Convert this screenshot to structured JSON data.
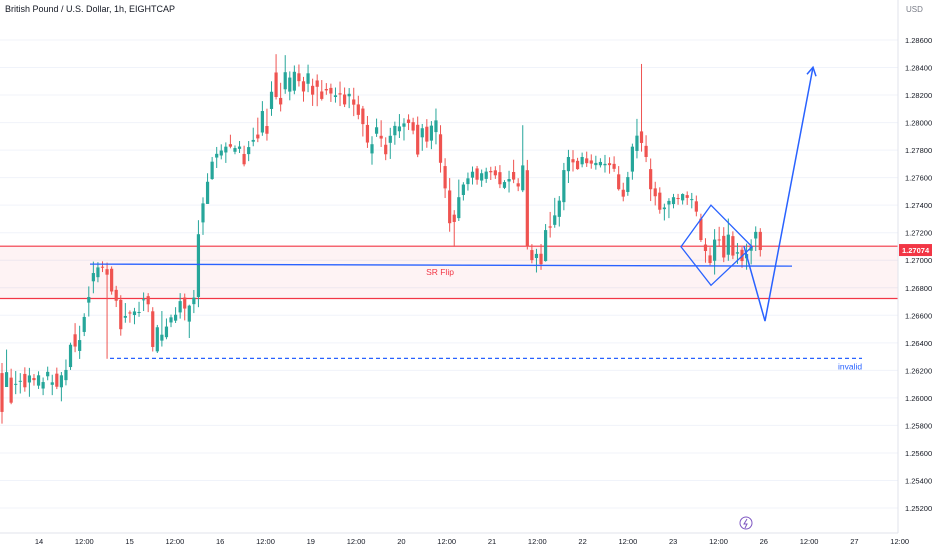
{
  "header": {
    "title": "British Pound / U.S. Dollar, 1h, EIGHTCAP",
    "currency": "USD"
  },
  "chart_data": {
    "type": "candlestick",
    "y_axis": {
      "ticks": [
        "1.28600",
        "1.28400",
        "1.28200",
        "1.28000",
        "1.27800",
        "1.27600",
        "1.27400",
        "1.27200",
        "1.27000",
        "1.26800",
        "1.26600",
        "1.26400",
        "1.26200",
        "1.26000",
        "1.25800",
        "1.25600",
        "1.25400",
        "1.25200"
      ],
      "ylim": [
        1.2505,
        1.2875
      ]
    },
    "x_axis": {
      "ticks": [
        "14",
        "12:00",
        "15",
        "12:00",
        "16",
        "12:00",
        "19",
        "12:00",
        "20",
        "12:00",
        "21",
        "12:00",
        "22",
        "12:00",
        "23",
        "12:00",
        "26",
        "12:00",
        "27",
        "12:00"
      ]
    },
    "current_price": "1.27074",
    "colors": {
      "up": "#26a69a",
      "down": "#ef5350",
      "drawing": "#2962ff",
      "zone": "#f23645"
    },
    "sr_zone": {
      "top": 1.27102,
      "bottom": 1.26722
    },
    "sr_flip_line": {
      "label": "SR Flip",
      "start_price": 1.26972,
      "end_price": 1.26957
    },
    "invalid_line": {
      "label": "invalid",
      "price": 1.26287
    },
    "diamond": {
      "top": 1.274,
      "bottom": 1.26818,
      "left": 1.27098,
      "right": 1.27098
    },
    "projection_path": [
      1.27102,
      1.26558,
      1.28402
    ],
    "candles": [
      [
        1.2618,
        1.26253,
        1.25813,
        1.25898
      ],
      [
        1.26079,
        1.26351,
        1.26079,
        1.26187
      ],
      [
        1.26147,
        1.26212,
        1.25954,
        1.25965
      ],
      [
        1.26102,
        1.26195,
        1.26027,
        1.26102
      ],
      [
        1.26118,
        1.2618,
        1.26032,
        1.26124
      ],
      [
        1.26174,
        1.26222,
        1.26045,
        1.26077
      ],
      [
        1.26112,
        1.26218,
        1.26008,
        1.26163
      ],
      [
        1.26144,
        1.26173,
        1.26089,
        1.26129
      ],
      [
        1.26089,
        1.26193,
        1.26065,
        1.26164
      ],
      [
        1.26068,
        1.26148,
        1.2602,
        1.26115
      ],
      [
        1.26157,
        1.26227,
        1.26128,
        1.26189
      ],
      [
        1.26095,
        1.26168,
        1.2602,
        1.26113
      ],
      [
        1.26176,
        1.2622,
        1.26064,
        1.26081
      ],
      [
        1.26077,
        1.26188,
        1.25975,
        1.26164
      ],
      [
        1.26129,
        1.26279,
        1.26091,
        1.26203
      ],
      [
        1.26224,
        1.26401,
        1.26203,
        1.26386
      ],
      [
        1.26462,
        1.26543,
        1.26332,
        1.26373
      ],
      [
        1.26341,
        1.26524,
        1.26283,
        1.2642
      ],
      [
        1.26479,
        1.26615,
        1.26449,
        1.26588
      ],
      [
        1.26692,
        1.2681,
        1.26591,
        1.26733
      ],
      [
        1.26847,
        1.2699,
        1.2676,
        1.26907
      ],
      [
        1.26877,
        1.26986,
        1.2684,
        1.26948
      ],
      [
        1.26953,
        1.26992,
        1.26914,
        1.26946
      ],
      [
        1.26935,
        1.26983,
        1.26284,
        1.26895
      ],
      [
        1.26938,
        1.26955,
        1.2675,
        1.26773
      ],
      [
        1.26785,
        1.26814,
        1.2666,
        1.26706
      ],
      [
        1.26712,
        1.26746,
        1.26452,
        1.26499
      ],
      [
        1.26582,
        1.26689,
        1.26546,
        1.26595
      ],
      [
        1.26621,
        1.26635,
        1.26546,
        1.26613
      ],
      [
        1.26602,
        1.26654,
        1.26535,
        1.26628
      ],
      [
        1.26622,
        1.26698,
        1.26589,
        1.26624
      ],
      [
        1.26715,
        1.26766,
        1.26631,
        1.26716
      ],
      [
        1.26739,
        1.26761,
        1.26623,
        1.2668
      ],
      [
        1.26629,
        1.26659,
        1.26337,
        1.2637
      ],
      [
        1.26338,
        1.2653,
        1.26326,
        1.26513
      ],
      [
        1.26416,
        1.26631,
        1.26373,
        1.26459
      ],
      [
        1.26441,
        1.26577,
        1.26426,
        1.26518
      ],
      [
        1.26548,
        1.26605,
        1.26514,
        1.26585
      ],
      [
        1.26561,
        1.26659,
        1.26544,
        1.26604
      ],
      [
        1.26621,
        1.26761,
        1.26576,
        1.26703
      ],
      [
        1.26729,
        1.26758,
        1.26563,
        1.26649
      ],
      [
        1.26554,
        1.26677,
        1.26435,
        1.2667
      ],
      [
        1.26681,
        1.26784,
        1.26616,
        1.26728
      ],
      [
        1.26733,
        1.27291,
        1.26659,
        1.27189
      ],
      [
        1.27275,
        1.27457,
        1.27184,
        1.27413
      ],
      [
        1.27409,
        1.27632,
        1.27409,
        1.2757
      ],
      [
        1.2759,
        1.2775,
        1.27584,
        1.27716
      ],
      [
        1.27746,
        1.27823,
        1.2767,
        1.27773
      ],
      [
        1.27761,
        1.27842,
        1.27733,
        1.27797
      ],
      [
        1.27783,
        1.27856,
        1.27707,
        1.27825
      ],
      [
        1.27843,
        1.27912,
        1.27813,
        1.27825
      ],
      [
        1.27788,
        1.27834,
        1.2777,
        1.27815
      ],
      [
        1.27809,
        1.27866,
        1.27779,
        1.27826
      ],
      [
        1.27772,
        1.27832,
        1.27682,
        1.27697
      ],
      [
        1.27771,
        1.27866,
        1.2772,
        1.27822
      ],
      [
        1.27861,
        1.27963,
        1.27828,
        1.27874
      ],
      [
        1.27913,
        1.28036,
        1.27858,
        1.27885
      ],
      [
        1.27928,
        1.28156,
        1.27904,
        1.28084
      ],
      [
        1.27975,
        1.28101,
        1.27869,
        1.27919
      ],
      [
        1.28099,
        1.283,
        1.28049,
        1.28224
      ],
      [
        1.28364,
        1.28497,
        1.28168,
        1.28186
      ],
      [
        1.28179,
        1.28289,
        1.28081,
        1.28132
      ],
      [
        1.28242,
        1.2849,
        1.28209,
        1.28366
      ],
      [
        1.28225,
        1.28372,
        1.28162,
        1.28327
      ],
      [
        1.28232,
        1.28415,
        1.28206,
        1.28369
      ],
      [
        1.28358,
        1.28422,
        1.28262,
        1.28301
      ],
      [
        1.283,
        1.28332,
        1.28152,
        1.28226
      ],
      [
        1.28282,
        1.28421,
        1.28221,
        1.28358
      ],
      [
        1.28267,
        1.28319,
        1.28121,
        1.28203
      ],
      [
        1.28306,
        1.2835,
        1.28119,
        1.2826
      ],
      [
        1.28226,
        1.28309,
        1.2816,
        1.28172
      ],
      [
        1.28244,
        1.28287,
        1.28202,
        1.28234
      ],
      [
        1.28252,
        1.28283,
        1.2815,
        1.28211
      ],
      [
        1.28186,
        1.28255,
        1.28145,
        1.28198
      ],
      [
        1.28213,
        1.28298,
        1.2812,
        1.28204
      ],
      [
        1.28204,
        1.28255,
        1.28113,
        1.28132
      ],
      [
        1.28191,
        1.28251,
        1.28105,
        1.28209
      ],
      [
        1.28168,
        1.28253,
        1.28047,
        1.2813
      ],
      [
        1.28132,
        1.28195,
        1.28024,
        1.28056
      ],
      [
        1.28102,
        1.28121,
        1.27899,
        1.27989
      ],
      [
        1.27983,
        1.28048,
        1.27816,
        1.27855
      ],
      [
        1.27776,
        1.27901,
        1.27694,
        1.27843
      ],
      [
        1.27919,
        1.28029,
        1.27896,
        1.27966
      ],
      [
        1.27904,
        1.28017,
        1.27823,
        1.27884
      ],
      [
        1.27839,
        1.27893,
        1.27727,
        1.2777
      ],
      [
        1.27853,
        1.27962,
        1.27736,
        1.27904
      ],
      [
        1.27908,
        1.28007,
        1.27839,
        1.27976
      ],
      [
        1.27937,
        1.28062,
        1.27888,
        1.27972
      ],
      [
        1.2797,
        1.28032,
        1.2787,
        1.27994
      ],
      [
        1.28022,
        1.2806,
        1.27946,
        1.27997
      ],
      [
        1.28003,
        1.28035,
        1.27915,
        1.27942
      ],
      [
        1.27984,
        1.28044,
        1.27749,
        1.27768
      ],
      [
        1.27893,
        1.2799,
        1.27795,
        1.27959
      ],
      [
        1.2797,
        1.28025,
        1.27817,
        1.27862
      ],
      [
        1.27869,
        1.28011,
        1.27807,
        1.27978
      ],
      [
        1.27931,
        1.28102,
        1.27842,
        1.28016
      ],
      [
        1.27915,
        1.27981,
        1.27637,
        1.27708
      ],
      [
        1.27684,
        1.27741,
        1.27452,
        1.27522
      ],
      [
        1.27507,
        1.27597,
        1.27207,
        1.27269
      ],
      [
        1.27331,
        1.27364,
        1.27098,
        1.27278
      ],
      [
        1.27306,
        1.27586,
        1.27285,
        1.27458
      ],
      [
        1.27474,
        1.27567,
        1.27434,
        1.2755
      ],
      [
        1.27553,
        1.27637,
        1.27506,
        1.27595
      ],
      [
        1.276,
        1.27681,
        1.2755,
        1.27643
      ],
      [
        1.27667,
        1.27685,
        1.27549,
        1.27585
      ],
      [
        1.27579,
        1.27659,
        1.27533,
        1.27632
      ],
      [
        1.27591,
        1.27672,
        1.27562,
        1.27644
      ],
      [
        1.27648,
        1.27679,
        1.27583,
        1.27639
      ],
      [
        1.27653,
        1.27683,
        1.27591,
        1.27617
      ],
      [
        1.2764,
        1.27691,
        1.27524,
        1.27552
      ],
      [
        1.27526,
        1.27582,
        1.27517,
        1.27568
      ],
      [
        1.27572,
        1.2765,
        1.27492,
        1.2759
      ],
      [
        1.27641,
        1.2773,
        1.2756,
        1.27586
      ],
      [
        1.27559,
        1.27596,
        1.27502,
        1.27536
      ],
      [
        1.27508,
        1.27981,
        1.27495,
        1.27689
      ],
      [
        1.27654,
        1.27729,
        1.27078,
        1.271
      ],
      [
        1.27074,
        1.27117,
        1.26978,
        1.27001
      ],
      [
        1.27016,
        1.27083,
        1.26911,
        1.27046
      ],
      [
        1.27047,
        1.27118,
        1.2693,
        1.26971
      ],
      [
        1.26994,
        1.27263,
        1.2699,
        1.27219
      ],
      [
        1.27246,
        1.27351,
        1.27165,
        1.27237
      ],
      [
        1.27257,
        1.27453,
        1.27236,
        1.27326
      ],
      [
        1.27315,
        1.27466,
        1.27245,
        1.27433
      ],
      [
        1.27422,
        1.27707,
        1.27363,
        1.27655
      ],
      [
        1.27647,
        1.27802,
        1.27561,
        1.2775
      ],
      [
        1.27734,
        1.278,
        1.27645,
        1.27711
      ],
      [
        1.27722,
        1.27744,
        1.27657,
        1.27662
      ],
      [
        1.27697,
        1.27782,
        1.27675,
        1.2775
      ],
      [
        1.2774,
        1.27789,
        1.27678,
        1.27705
      ],
      [
        1.27725,
        1.27769,
        1.27665,
        1.27702
      ],
      [
        1.27691,
        1.27759,
        1.27658,
        1.27707
      ],
      [
        1.2769,
        1.27741,
        1.27674,
        1.27714
      ],
      [
        1.2769,
        1.27765,
        1.27637,
        1.277
      ],
      [
        1.27705,
        1.27748,
        1.27629,
        1.27691
      ],
      [
        1.277,
        1.27755,
        1.27642,
        1.27664
      ],
      [
        1.27624,
        1.27684,
        1.27506,
        1.27516
      ],
      [
        1.27512,
        1.27563,
        1.27428,
        1.27462
      ],
      [
        1.27496,
        1.27642,
        1.27468,
        1.27604
      ],
      [
        1.27644,
        1.27847,
        1.27585,
        1.27825
      ],
      [
        1.27794,
        1.28027,
        1.2774,
        1.27905
      ],
      [
        1.27936,
        1.28426,
        1.27789,
        1.27852
      ],
      [
        1.27831,
        1.27908,
        1.27713,
        1.2775
      ],
      [
        1.27662,
        1.27739,
        1.2743,
        1.27516
      ],
      [
        1.27522,
        1.2757,
        1.27398,
        1.27465
      ],
      [
        1.27491,
        1.2753,
        1.27338,
        1.27367
      ],
      [
        1.27371,
        1.27411,
        1.27289,
        1.27383
      ],
      [
        1.27405,
        1.27451,
        1.27306,
        1.27431
      ],
      [
        1.27408,
        1.27482,
        1.27377,
        1.27458
      ],
      [
        1.27452,
        1.27482,
        1.27403,
        1.27451
      ],
      [
        1.27435,
        1.27486,
        1.27405,
        1.27481
      ],
      [
        1.27473,
        1.275,
        1.27402,
        1.27453
      ],
      [
        1.27443,
        1.27489,
        1.27377,
        1.27444
      ],
      [
        1.27428,
        1.2747,
        1.27319,
        1.27353
      ],
      [
        1.27302,
        1.27338,
        1.27133,
        1.27147
      ],
      [
        1.27114,
        1.2716,
        1.26982,
        1.27067
      ],
      [
        1.27035,
        1.27094,
        1.26964,
        1.2698
      ],
      [
        1.26996,
        1.27226,
        1.26896,
        1.2715
      ],
      [
        1.27151,
        1.27243,
        1.27098,
        1.27145
      ],
      [
        1.27177,
        1.2724,
        1.26986,
        1.2702
      ],
      [
        1.2704,
        1.27303,
        1.26996,
        1.27186
      ],
      [
        1.27175,
        1.2721,
        1.27008,
        1.27034
      ],
      [
        1.27048,
        1.27125,
        1.26973,
        1.27058
      ],
      [
        1.27076,
        1.27095,
        1.26945,
        1.26994
      ],
      [
        1.27014,
        1.27121,
        1.26931,
        1.27045
      ],
      [
        1.27069,
        1.27152,
        1.2697,
        1.27098
      ],
      [
        1.27158,
        1.27246,
        1.27067,
        1.27206
      ],
      [
        1.27206,
        1.27233,
        1.27027,
        1.27074
      ]
    ],
    "x_start": 2,
    "x_step": 4.568
  },
  "annotations": {
    "invalid": "invalid",
    "sr_flip": "SR Flip"
  }
}
